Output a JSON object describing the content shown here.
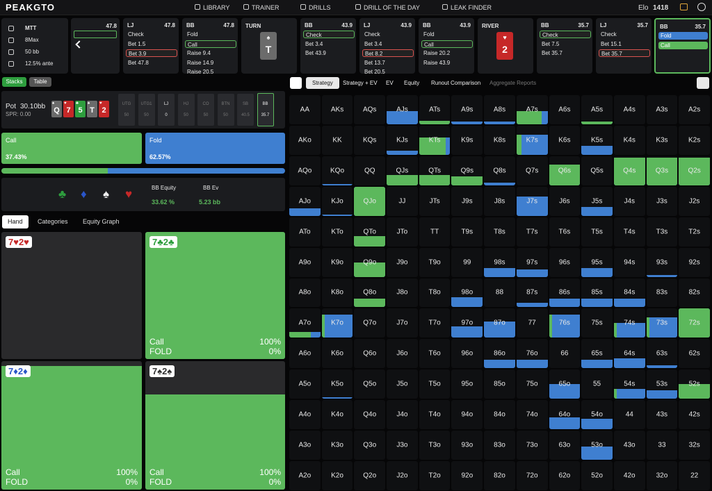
{
  "nav": {
    "logo": "PEAKGTO",
    "links": [
      "LIBRARY",
      "TRAINER",
      "DRILLS",
      "DRILL OF THE DAY",
      "LEAK FINDER"
    ],
    "elo_label": "Elo",
    "elo": "1418"
  },
  "settings": [
    "MTT",
    "8Max",
    "50 bb",
    "12.5% ante"
  ],
  "history": [
    {
      "partial": true,
      "stack": "47.8"
    },
    {
      "pos": "LJ",
      "stack": "47.8",
      "actions": [
        {
          "label": "Check"
        },
        {
          "label": "Bet 1.5"
        },
        {
          "label": "Bet 3.9",
          "outline": "#d9534f"
        },
        {
          "label": "Bet 47.8"
        }
      ]
    },
    {
      "pos": "BB",
      "stack": "47.8",
      "actions": [
        {
          "label": "Fold"
        },
        {
          "label": "Call",
          "outline": "#5cb85c"
        },
        {
          "label": "Raise 9.4"
        },
        {
          "label": "Raise 14.9"
        },
        {
          "label": "Raise 20.5"
        }
      ]
    },
    {
      "street": "TURN",
      "card": {
        "rank": "T",
        "suit": "♠",
        "color": "#6b6b6b"
      }
    },
    {
      "pos": "BB",
      "stack": "43.9",
      "actions": [
        {
          "label": "Check",
          "outline": "#5cb85c"
        },
        {
          "label": "Bet 3.4"
        },
        {
          "label": "Bet 43.9"
        }
      ]
    },
    {
      "pos": "LJ",
      "stack": "43.9",
      "actions": [
        {
          "label": "Check"
        },
        {
          "label": "Bet 3.4"
        },
        {
          "label": "Bet 8.2",
          "outline": "#d9534f"
        },
        {
          "label": "Bet 13.7"
        },
        {
          "label": "Bet 20.5"
        }
      ]
    },
    {
      "pos": "BB",
      "stack": "43.9",
      "actions": [
        {
          "label": "Fold"
        },
        {
          "label": "Call",
          "outline": "#5cb85c"
        },
        {
          "label": "Raise 20.2"
        },
        {
          "label": "Raise 43.9"
        }
      ]
    },
    {
      "street": "RIVER",
      "card": {
        "rank": "2",
        "suit": "♥",
        "color": "#c62828"
      }
    },
    {
      "pos": "BB",
      "stack": "35.7",
      "actions": [
        {
          "label": "Check",
          "outline": "#5cb85c"
        },
        {
          "label": "Bet 7.5"
        },
        {
          "label": "Bet 35.7"
        }
      ]
    },
    {
      "pos": "LJ",
      "stack": "35.7",
      "actions": [
        {
          "label": "Check"
        },
        {
          "label": "Bet 15.1"
        },
        {
          "label": "Bet 35.7",
          "outline": "#d9534f"
        }
      ]
    },
    {
      "pos": "BB",
      "stack": "35.7",
      "active": true,
      "actions": [
        {
          "label": "Fold",
          "fill": "#3f7fd0"
        },
        {
          "label": "Call",
          "fill": "#5cb85c"
        }
      ]
    }
  ],
  "view_tabs": [
    "Stacks",
    "Table"
  ],
  "pot": {
    "label": "Pot",
    "value": "30.10bb",
    "spr": "SPR: 0.00"
  },
  "board": [
    {
      "rank": "Q",
      "suit": "♠",
      "color": "#6b6b6b"
    },
    {
      "rank": "7",
      "suit": "♥",
      "color": "#c62828"
    },
    {
      "rank": "5",
      "suit": "♣",
      "color": "#2e9e3e"
    },
    {
      "rank": "T",
      "suit": "♠",
      "color": "#6b6b6b"
    },
    {
      "rank": "2",
      "suit": "♥",
      "color": "#c62828"
    }
  ],
  "positions": [
    {
      "name": "UTG",
      "stack": "50"
    },
    {
      "name": "UTG1",
      "stack": "50"
    },
    {
      "name": "LJ",
      "stack": "0",
      "bright": true
    },
    {
      "name": "HJ",
      "stack": "50"
    },
    {
      "name": "CO",
      "stack": "50"
    },
    {
      "name": "BTN",
      "stack": "50"
    },
    {
      "name": "SB",
      "stack": "40.5"
    },
    {
      "name": "BB",
      "stack": "35.7",
      "bright": true,
      "current": true
    }
  ],
  "strategy": [
    {
      "label": "Call",
      "value": 37.43,
      "value_label": "37.43%",
      "color": "#5cb85c"
    },
    {
      "label": "Fold",
      "value": 62.57,
      "value_label": "62.57%",
      "color": "#3f7fd0"
    }
  ],
  "equity": {
    "equity_label": "BB Equity",
    "equity": "33.62 %",
    "ev_label": "BB Ev",
    "ev": "5.23 bb"
  },
  "hand_tabs": [
    "Hand",
    "Categories",
    "Equity Graph"
  ],
  "combos": [
    {
      "hand": "7♥2♥",
      "color": "#c62828",
      "weight": 0
    },
    {
      "hand": "7♣2♣",
      "color": "#2e9e3e",
      "weight": 1,
      "lines": [
        [
          "Call",
          "100%"
        ],
        [
          "FOLD",
          "0%"
        ]
      ]
    },
    {
      "hand": "7♦2♦",
      "color": "#2a55c8",
      "weight": 0.96,
      "lines": [
        [
          "Call",
          "100%"
        ],
        [
          "FOLD",
          "0%"
        ]
      ]
    },
    {
      "hand": "7♠2♠",
      "color": "#333",
      "weight": 0.74,
      "lines": [
        [
          "Call",
          "100%"
        ],
        [
          "FOLD",
          "0%"
        ]
      ]
    }
  ],
  "matrix_tabs": [
    "Strategy",
    "Strategy + EV",
    "EV",
    "Equity",
    "Runout Comparison",
    "Aggregate Reports"
  ],
  "matrix": {
    "call_color": "#5cb85c",
    "fold_color": "#3f7fd0",
    "hands": [
      [
        "AA",
        "AKs",
        "AQs",
        "AJs",
        "ATs",
        "A9s",
        "A8s",
        "A7s",
        "A6s",
        "A5s",
        "A4s",
        "A3s",
        "A2s"
      ],
      [
        "AKo",
        "KK",
        "KQs",
        "KJs",
        "KTs",
        "K9s",
        "K8s",
        "K7s",
        "K6s",
        "K5s",
        "K4s",
        "K3s",
        "K2s"
      ],
      [
        "AQo",
        "KQo",
        "QQ",
        "QJs",
        "QTs",
        "Q9s",
        "Q8s",
        "Q7s",
        "Q6s",
        "Q5s",
        "Q4s",
        "Q3s",
        "Q2s"
      ],
      [
        "AJo",
        "KJo",
        "QJo",
        "JJ",
        "JTs",
        "J9s",
        "J8s",
        "J7s",
        "J6s",
        "J5s",
        "J4s",
        "J3s",
        "J2s"
      ],
      [
        "ATo",
        "KTo",
        "QTo",
        "JTo",
        "TT",
        "T9s",
        "T8s",
        "T7s",
        "T6s",
        "T5s",
        "T4s",
        "T3s",
        "T2s"
      ],
      [
        "A9o",
        "K9o",
        "Q9o",
        "J9o",
        "T9o",
        "99",
        "98s",
        "97s",
        "96s",
        "95s",
        "94s",
        "93s",
        "92s"
      ],
      [
        "A8o",
        "K8o",
        "Q8o",
        "J8o",
        "T8o",
        "98o",
        "88",
        "87s",
        "86s",
        "85s",
        "84s",
        "83s",
        "82s"
      ],
      [
        "A7o",
        "K7o",
        "Q7o",
        "J7o",
        "T7o",
        "97o",
        "87o",
        "77",
        "76s",
        "75s",
        "74s",
        "73s",
        "72s"
      ],
      [
        "A6o",
        "K6o",
        "Q6o",
        "J6o",
        "T6o",
        "96o",
        "86o",
        "76o",
        "66",
        "65s",
        "64s",
        "63s",
        "62s"
      ],
      [
        "A5o",
        "K5o",
        "Q5o",
        "J5o",
        "T5o",
        "95o",
        "85o",
        "75o",
        "65o",
        "55",
        "54s",
        "53s",
        "52s"
      ],
      [
        "A4o",
        "K4o",
        "Q4o",
        "J4o",
        "T4o",
        "94o",
        "84o",
        "74o",
        "64o",
        "54o",
        "44",
        "43s",
        "42s"
      ],
      [
        "A3o",
        "K3o",
        "Q3o",
        "J3o",
        "T3o",
        "93o",
        "83o",
        "73o",
        "63o",
        "53o",
        "43o",
        "33",
        "32s"
      ],
      [
        "A2o",
        "K2o",
        "Q2o",
        "J2o",
        "T2o",
        "92o",
        "82o",
        "72o",
        "62o",
        "52o",
        "42o",
        "32o",
        "22"
      ]
    ],
    "weight": [
      [
        0,
        0,
        0,
        0.45,
        0.12,
        0.1,
        0.1,
        0.45,
        0,
        0.1,
        0,
        0,
        0
      ],
      [
        0,
        0,
        0,
        0.15,
        0.6,
        0,
        0,
        0.7,
        0,
        0.3,
        0,
        0,
        0
      ],
      [
        0,
        0.05,
        0,
        0.35,
        0.35,
        0.3,
        0.1,
        0,
        0.7,
        0,
        0.95,
        0.95,
        0.95
      ],
      [
        0.25,
        0.05,
        1,
        0,
        0,
        0,
        0,
        0.65,
        0,
        0.3,
        0,
        0,
        0
      ],
      [
        0,
        0,
        0.35,
        0,
        0,
        0,
        0,
        0,
        0,
        0,
        0,
        0,
        0
      ],
      [
        0,
        0,
        0.5,
        0,
        0,
        0,
        0.3,
        0.25,
        0,
        0.3,
        0,
        0.05,
        0
      ],
      [
        0,
        0,
        0.3,
        0,
        0,
        0.35,
        0,
        0.15,
        0.3,
        0.3,
        0.3,
        0,
        0
      ],
      [
        0.2,
        0.8,
        0,
        0,
        0,
        0.4,
        0.55,
        0,
        0.8,
        0,
        0.5,
        0.7,
        1
      ],
      [
        0,
        0,
        0,
        0,
        0,
        0,
        0.3,
        0.3,
        0,
        0.3,
        0.35,
        0.1,
        0
      ],
      [
        0,
        0.05,
        0,
        0,
        0,
        0,
        0,
        0,
        0.5,
        0,
        0.35,
        0.3,
        0.5
      ],
      [
        0,
        0,
        0,
        0,
        0,
        0,
        0,
        0,
        0.4,
        0.35,
        0,
        0,
        0
      ],
      [
        0,
        0,
        0,
        0,
        0,
        0,
        0,
        0,
        0,
        0.45,
        0,
        0,
        0
      ],
      [
        0,
        0,
        0,
        0,
        0,
        0,
        0,
        0,
        0,
        0,
        0,
        0,
        0
      ]
    ],
    "call": [
      [
        0,
        0,
        0,
        0,
        1,
        0,
        0,
        0.8,
        0,
        1,
        0,
        0,
        0
      ],
      [
        0,
        0,
        0,
        0,
        0.85,
        0,
        0,
        0.15,
        0,
        0,
        0,
        0,
        0
      ],
      [
        0,
        0,
        0,
        1,
        1,
        1,
        0,
        0,
        1,
        0,
        1,
        1,
        1
      ],
      [
        0,
        0,
        1,
        0,
        0,
        0,
        0,
        0,
        0,
        0,
        0,
        0,
        0
      ],
      [
        0,
        0,
        1,
        0,
        0,
        0,
        0,
        0,
        0,
        0,
        0,
        0,
        0
      ],
      [
        0,
        0,
        1,
        0,
        0,
        0,
        0,
        0,
        0,
        0,
        0,
        0,
        0
      ],
      [
        0,
        0,
        1,
        0,
        0,
        0,
        0,
        0,
        0,
        0,
        0,
        0,
        0
      ],
      [
        0.7,
        0.1,
        0,
        0,
        0,
        0,
        0,
        0,
        0.1,
        0,
        0.1,
        0.1,
        1
      ],
      [
        0,
        0,
        0,
        0,
        0,
        0,
        0,
        0,
        0,
        0,
        0,
        0,
        0
      ],
      [
        0,
        0,
        0,
        0,
        0,
        0,
        0,
        0,
        0,
        0,
        0.1,
        0,
        1
      ],
      [
        0,
        0,
        0,
        0,
        0,
        0,
        0,
        0,
        0,
        0,
        0,
        0,
        0
      ],
      [
        0,
        0,
        0,
        0,
        0,
        0,
        0,
        0,
        0,
        0,
        0,
        0,
        0
      ],
      [
        0,
        0,
        0,
        0,
        0,
        0,
        0,
        0,
        0,
        0,
        0,
        0,
        0
      ]
    ]
  }
}
